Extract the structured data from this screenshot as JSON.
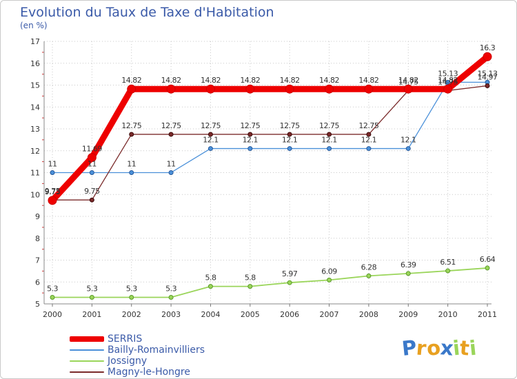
{
  "chart_data": {
    "type": "line",
    "title": "Evolution du Taux de Taxe d'Habitation",
    "ylabel": "(en %)",
    "xlabel": "",
    "categories": [
      "2000",
      "2001",
      "2002",
      "2003",
      "2004",
      "2005",
      "2006",
      "2007",
      "2008",
      "2009",
      "2010",
      "2011"
    ],
    "ylim": [
      5,
      17
    ],
    "yticks": [
      "5",
      "6",
      "7",
      "8",
      "9",
      "10",
      "11",
      "12",
      "13",
      "14",
      "15",
      "16",
      "17"
    ],
    "grid": true,
    "series": [
      {
        "name": "SERRIS",
        "color": "#ee0000",
        "values": [
          9.73,
          11.69,
          14.82,
          14.82,
          14.82,
          14.82,
          14.82,
          14.82,
          14.82,
          14.82,
          14.82,
          16.3
        ],
        "labels": [
          "9.73",
          "11.69",
          "14.82",
          "14.82",
          "14.82",
          "14.82",
          "14.82",
          "14.82",
          "14.82",
          "14.82",
          "14.82",
          "16.3"
        ]
      },
      {
        "name": "Bailly-Romainvilliers",
        "color": "#4a90d9",
        "values": [
          11,
          11,
          11,
          11,
          12.1,
          12.1,
          12.1,
          12.1,
          12.1,
          12.1,
          15.13,
          15.13
        ],
        "labels": [
          "11",
          "11",
          "11",
          "11",
          "12.1",
          "12.1",
          "12.1",
          "12.1",
          "12.1",
          "12.1",
          "15.13",
          "15.13"
        ]
      },
      {
        "name": "Jossigny",
        "color": "#9ad55a",
        "values": [
          5.3,
          5.3,
          5.3,
          5.3,
          5.8,
          5.8,
          5.97,
          6.09,
          6.28,
          6.39,
          6.51,
          6.64
        ],
        "labels": [
          "5.3",
          "5.3",
          "5.3",
          "5.3",
          "5.8",
          "5.8",
          "5.97",
          "6.09",
          "6.28",
          "6.39",
          "6.51",
          "6.64"
        ]
      },
      {
        "name": "Magny-le-Hongre",
        "color": "#7a2a2a",
        "values": [
          9.75,
          9.75,
          12.75,
          12.75,
          12.75,
          12.75,
          12.75,
          12.75,
          12.75,
          14.75,
          14.75,
          14.97
        ],
        "labels": [
          "9.75",
          "9.75",
          "12.75",
          "12.75",
          "12.75",
          "12.75",
          "12.75",
          "12.75",
          "12.75",
          "14.75",
          "14.75",
          "14.97"
        ]
      }
    ],
    "legend_position": "bottom-left"
  },
  "logo": {
    "text": "Proxiti",
    "letters": [
      "P",
      "r",
      "o",
      "x",
      "i",
      "t",
      "i"
    ],
    "colors": [
      "#3a78c9",
      "#e8a020",
      "#e8a020",
      "#3a78c9",
      "#9ad55a",
      "#e8a020",
      "#9ad55a"
    ]
  }
}
